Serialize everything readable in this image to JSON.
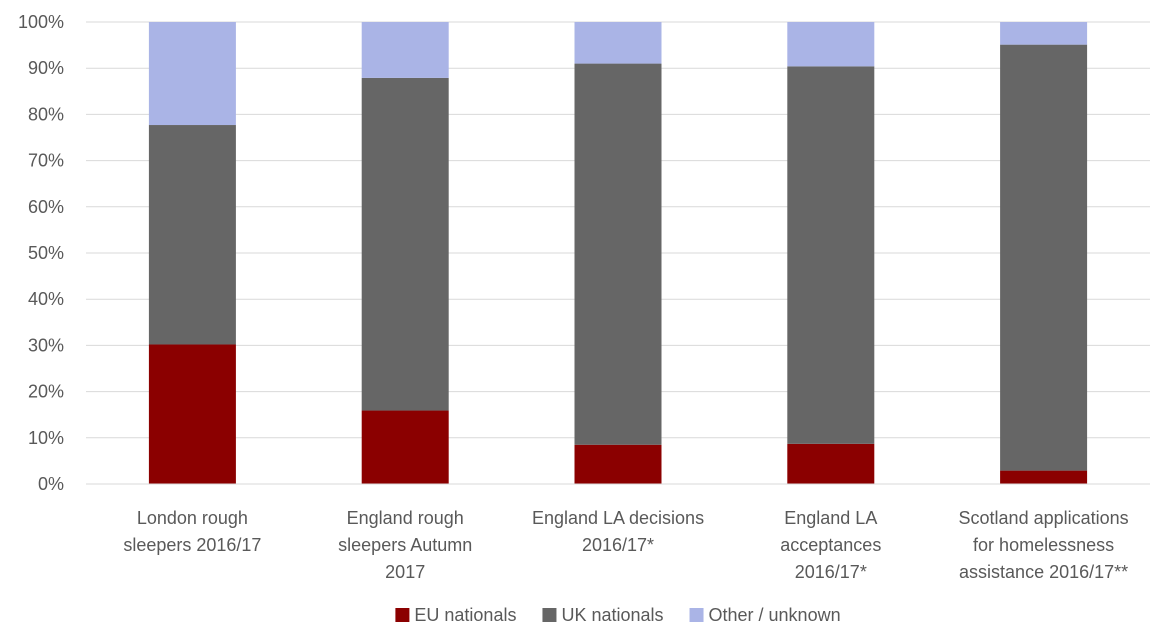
{
  "chart_data": {
    "type": "bar",
    "stacked": true,
    "categories": [
      [
        "London rough",
        "sleepers 2016/17"
      ],
      [
        "England rough",
        "sleepers Autumn",
        "2017"
      ],
      [
        "England LA decisions",
        "2016/17*"
      ],
      [
        "England LA",
        "acceptances",
        "2016/17*"
      ],
      [
        "Scotland applications",
        "for homelessness",
        "assistance 2016/17**"
      ]
    ],
    "series": [
      {
        "name": "EU nationals",
        "color": "#8b0000",
        "values": [
          30.2,
          15.9,
          8.5,
          8.7,
          2.9
        ]
      },
      {
        "name": "UK nationals",
        "color": "#666666",
        "values": [
          47.5,
          72.0,
          82.5,
          81.7,
          92.2
        ]
      },
      {
        "name": "Other / unknown",
        "color": "#aab4e6",
        "values": [
          22.3,
          12.1,
          9.0,
          9.6,
          4.9
        ]
      }
    ],
    "yticks": [
      "0%",
      "10%",
      "20%",
      "30%",
      "40%",
      "50%",
      "60%",
      "70%",
      "80%",
      "90%",
      "100%"
    ],
    "ylim": [
      0,
      100
    ],
    "grid": true,
    "legend": "bottom-center",
    "title": "",
    "xlabel": "",
    "ylabel": ""
  }
}
